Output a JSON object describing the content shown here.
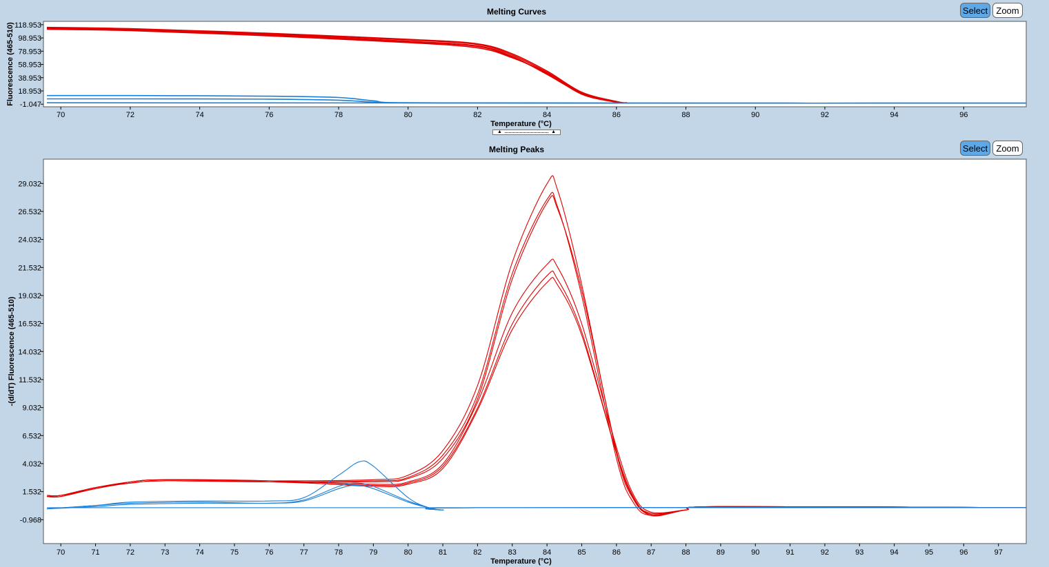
{
  "top_panel": {
    "title": "Melting Curves",
    "select_label": "Select",
    "zoom_label": "Zoom"
  },
  "bottom_panel": {
    "title": "Melting Peaks",
    "select_label": "Select",
    "zoom_label": "Zoom"
  },
  "splitter": {
    "up_glyph": "▲",
    "down_glyph": "▲"
  },
  "colors": {
    "positive": "#e00000",
    "negative": "#1a7fd8",
    "background": "#c3d6e8",
    "select_button": "#5ea8e8"
  },
  "chart_data": [
    {
      "type": "line",
      "title": "Melting Curves",
      "xlabel": "Temperature (°C)",
      "ylabel": "Fluorescence (465-510)",
      "xlim": [
        69.5,
        97.8
      ],
      "ylim": [
        -5,
        124
      ],
      "xticks": [
        70,
        72,
        74,
        76,
        78,
        80,
        82,
        84,
        86,
        88,
        90,
        92,
        94,
        96
      ],
      "yticks": [
        118.953,
        98.953,
        78.953,
        58.953,
        38.953,
        18.953,
        -1.047
      ],
      "ytick_labels": [
        "118.953",
        "98.953",
        "78.953",
        "58.953",
        "38.953",
        "18.953",
        "-1.047"
      ],
      "series": [
        {
          "group": "positive",
          "values": [
            [
              69.6,
              113
            ],
            [
              72,
              111
            ],
            [
              76,
              103
            ],
            [
              80,
              93
            ],
            [
              82,
              86
            ],
            [
              83,
              70
            ],
            [
              84,
              45
            ],
            [
              85,
              15
            ],
            [
              86,
              2
            ],
            [
              86.3,
              1
            ]
          ]
        },
        {
          "group": "positive",
          "values": [
            [
              69.6,
              114
            ],
            [
              72,
              112
            ],
            [
              76,
              105
            ],
            [
              80,
              96
            ],
            [
              82,
              89
            ],
            [
              83,
              73
            ],
            [
              84,
              47
            ],
            [
              85,
              16
            ],
            [
              86,
              2
            ],
            [
              86.3,
              1
            ]
          ]
        },
        {
          "group": "positive",
          "values": [
            [
              69.6,
              115
            ],
            [
              72,
              113
            ],
            [
              76,
              106
            ],
            [
              80,
              97
            ],
            [
              82,
              90
            ],
            [
              83,
              75
            ],
            [
              84,
              49
            ],
            [
              85,
              17
            ],
            [
              86,
              3
            ],
            [
              86.3,
              1
            ]
          ]
        },
        {
          "group": "positive",
          "values": [
            [
              69.6,
              112
            ],
            [
              72,
              110
            ],
            [
              76,
              102
            ],
            [
              80,
              92
            ],
            [
              82,
              84
            ],
            [
              83,
              69
            ],
            [
              84,
              46
            ],
            [
              85,
              14
            ],
            [
              86,
              2
            ],
            [
              86.3,
              1
            ]
          ]
        },
        {
          "group": "positive",
          "values": [
            [
              69.6,
              113.5
            ],
            [
              72,
              111.5
            ],
            [
              76,
              104
            ],
            [
              80,
              94
            ],
            [
              82,
              87
            ],
            [
              83,
              71
            ],
            [
              84,
              44
            ],
            [
              85,
              15
            ],
            [
              86,
              2
            ],
            [
              86.3,
              1
            ]
          ]
        },
        {
          "group": "negative",
          "values": [
            [
              69.6,
              12
            ],
            [
              72,
              12
            ],
            [
              76,
              11
            ],
            [
              78,
              9
            ],
            [
              79,
              4
            ],
            [
              80,
              1
            ],
            [
              86,
              0.5
            ],
            [
              97.8,
              0.5
            ]
          ]
        },
        {
          "group": "negative",
          "values": [
            [
              69.6,
              7
            ],
            [
              72,
              7
            ],
            [
              76,
              6.5
            ],
            [
              78,
              5
            ],
            [
              79,
              2
            ],
            [
              80,
              1
            ],
            [
              86,
              0.5
            ],
            [
              97.8,
              0.5
            ]
          ]
        },
        {
          "group": "negative",
          "values": [
            [
              69.6,
              1
            ],
            [
              80,
              0.8
            ],
            [
              90,
              0.5
            ],
            [
              97.8,
              0.5
            ]
          ]
        }
      ]
    },
    {
      "type": "line",
      "title": "Melting Peaks",
      "xlabel": "Temperature (°C)",
      "ylabel": "-(d/dT) Fluorescence (465-510)",
      "xlim": [
        69.5,
        97.8
      ],
      "ylim": [
        -3.1,
        31.2
      ],
      "xticks": [
        70,
        71,
        72,
        73,
        74,
        75,
        76,
        77,
        78,
        79,
        80,
        81,
        82,
        83,
        84,
        85,
        86,
        87,
        88,
        89,
        90,
        91,
        92,
        93,
        94,
        95,
        96,
        97
      ],
      "yticks": [
        29.032,
        26.532,
        24.032,
        21.532,
        19.032,
        16.532,
        14.032,
        11.532,
        9.032,
        6.532,
        4.032,
        1.532,
        -0.968
      ],
      "ytick_labels": [
        "29.032",
        "26.532",
        "24.032",
        "21.532",
        "19.032",
        "16.532",
        "14.032",
        "11.532",
        "9.032",
        "6.532",
        "4.032",
        "1.532",
        "-0.968"
      ],
      "series": [
        {
          "group": "positive",
          "values": [
            [
              69.6,
              1.2
            ],
            [
              70,
              1.2
            ],
            [
              71,
              1.9
            ],
            [
              72,
              2.4
            ],
            [
              73,
              2.6
            ],
            [
              76,
              2.5
            ],
            [
              79,
              2.6
            ],
            [
              80,
              3.0
            ],
            [
              81,
              5.2
            ],
            [
              82,
              11.0
            ],
            [
              83,
              22.0
            ],
            [
              84,
              29.0
            ],
            [
              84.3,
              28.5
            ],
            [
              85,
              20.0
            ],
            [
              86,
              5.0
            ],
            [
              86.5,
              0.8
            ],
            [
              87,
              -0.5
            ],
            [
              88,
              -0.1
            ],
            [
              89,
              0.2
            ],
            [
              97.8,
              0.1
            ]
          ]
        },
        {
          "group": "positive",
          "values": [
            [
              69.6,
              1.1
            ],
            [
              70,
              1.1
            ],
            [
              71,
              1.8
            ],
            [
              72,
              2.3
            ],
            [
              73,
              2.5
            ],
            [
              76,
              2.4
            ],
            [
              79,
              2.5
            ],
            [
              80,
              2.8
            ],
            [
              81,
              4.8
            ],
            [
              82,
              10.2
            ],
            [
              83,
              21.0
            ],
            [
              84,
              27.6
            ],
            [
              84.3,
              27.0
            ],
            [
              85,
              19.0
            ],
            [
              86,
              4.5
            ],
            [
              86.5,
              0.5
            ],
            [
              87,
              -0.6
            ],
            [
              88,
              -0.1
            ],
            [
              89,
              0.2
            ],
            [
              97.8,
              0.1
            ]
          ]
        },
        {
          "group": "positive",
          "values": [
            [
              69.6,
              1.1
            ],
            [
              70,
              1.2
            ],
            [
              71,
              1.9
            ],
            [
              72,
              2.3
            ],
            [
              73,
              2.5
            ],
            [
              76,
              2.4
            ],
            [
              79,
              2.4
            ],
            [
              80,
              2.7
            ],
            [
              81,
              4.5
            ],
            [
              82,
              9.8
            ],
            [
              83,
              20.5
            ],
            [
              84,
              27.3
            ],
            [
              84.3,
              26.8
            ],
            [
              85,
              19.5
            ],
            [
              86,
              5.2
            ],
            [
              86.5,
              0.9
            ],
            [
              87,
              -0.4
            ],
            [
              88,
              -0.1
            ],
            [
              89,
              0.2
            ],
            [
              97.8,
              0.1
            ]
          ]
        },
        {
          "group": "positive",
          "values": [
            [
              69.6,
              1.2
            ],
            [
              70,
              1.2
            ],
            [
              71,
              1.8
            ],
            [
              72,
              2.4
            ],
            [
              73,
              2.6
            ],
            [
              76,
              2.5
            ],
            [
              79,
              2.2
            ],
            [
              80,
              2.4
            ],
            [
              81,
              4.0
            ],
            [
              82,
              9.5
            ],
            [
              83,
              17.5
            ],
            [
              84,
              21.8
            ],
            [
              84.3,
              21.6
            ],
            [
              85,
              16.5
            ],
            [
              86,
              5.5
            ],
            [
              86.5,
              1.2
            ],
            [
              87,
              -0.3
            ],
            [
              88,
              -0.1
            ],
            [
              89,
              0.2
            ],
            [
              97.8,
              0.1
            ]
          ]
        },
        {
          "group": "positive",
          "values": [
            [
              69.6,
              1.1
            ],
            [
              70,
              1.1
            ],
            [
              71,
              1.9
            ],
            [
              72,
              2.3
            ],
            [
              73,
              2.5
            ],
            [
              76,
              2.4
            ],
            [
              79,
              2.1
            ],
            [
              80,
              2.3
            ],
            [
              81,
              3.8
            ],
            [
              82,
              9.0
            ],
            [
              83,
              16.5
            ],
            [
              84,
              20.8
            ],
            [
              84.3,
              20.5
            ],
            [
              85,
              15.8
            ],
            [
              86,
              5.0
            ],
            [
              86.5,
              1.0
            ],
            [
              87,
              -0.5
            ],
            [
              88,
              -0.1
            ],
            [
              89,
              0.2
            ],
            [
              97.8,
              0.1
            ]
          ]
        },
        {
          "group": "positive",
          "values": [
            [
              69.6,
              1.2
            ],
            [
              70,
              1.2
            ],
            [
              71,
              1.9
            ],
            [
              72,
              2.4
            ],
            [
              73,
              2.6
            ],
            [
              76,
              2.5
            ],
            [
              79,
              2.0
            ],
            [
              80,
              2.2
            ],
            [
              81,
              3.6
            ],
            [
              82,
              8.8
            ],
            [
              83,
              16.0
            ],
            [
              84,
              20.2
            ],
            [
              84.3,
              20.0
            ],
            [
              85,
              15.5
            ],
            [
              86,
              5.0
            ],
            [
              86.5,
              1.0
            ],
            [
              87,
              -0.6
            ],
            [
              88,
              -0.1
            ],
            [
              89,
              0.2
            ],
            [
              97.8,
              0.1
            ]
          ]
        },
        {
          "group": "negative",
          "values": [
            [
              69.6,
              0
            ],
            [
              71,
              0.3
            ],
            [
              72,
              0.6
            ],
            [
              74,
              0.7
            ],
            [
              76,
              0.7
            ],
            [
              77,
              1.0
            ],
            [
              78,
              3.0
            ],
            [
              78.6,
              4.2
            ],
            [
              79,
              3.8
            ],
            [
              80,
              1.0
            ],
            [
              80.6,
              0.1
            ],
            [
              81,
              -0.1
            ],
            [
              82,
              0.1
            ],
            [
              97.8,
              0.1
            ]
          ]
        },
        {
          "group": "negative",
          "values": [
            [
              69.6,
              0
            ],
            [
              71,
              0.3
            ],
            [
              72,
              0.5
            ],
            [
              74,
              0.6
            ],
            [
              76,
              0.5
            ],
            [
              77,
              0.8
            ],
            [
              78,
              2.0
            ],
            [
              78.5,
              2.3
            ],
            [
              79,
              2.0
            ],
            [
              80,
              0.7
            ],
            [
              80.6,
              0.1
            ],
            [
              81,
              -0.1
            ],
            [
              82,
              0.1
            ],
            [
              97.8,
              0.1
            ]
          ]
        },
        {
          "group": "negative",
          "values": [
            [
              69.6,
              0
            ],
            [
              71,
              0.2
            ],
            [
              72,
              0.4
            ],
            [
              74,
              0.5
            ],
            [
              76,
              0.5
            ],
            [
              77,
              0.7
            ],
            [
              78,
              1.8
            ],
            [
              78.5,
              2.1
            ],
            [
              79,
              1.8
            ],
            [
              80,
              0.6
            ],
            [
              80.6,
              0.1
            ],
            [
              81,
              -0.1
            ],
            [
              82,
              0.1
            ],
            [
              97.8,
              0.1
            ]
          ]
        },
        {
          "group": "negative",
          "values": [
            [
              69.6,
              0.1
            ],
            [
              80,
              0.1
            ],
            [
              90,
              0.1
            ],
            [
              97.8,
              0.1
            ]
          ]
        }
      ]
    }
  ]
}
